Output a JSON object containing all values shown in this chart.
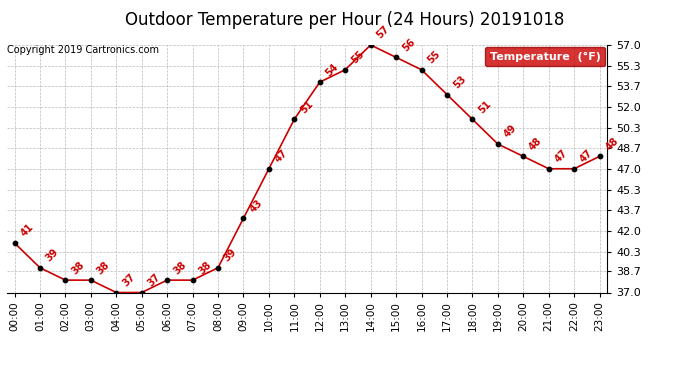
{
  "title": "Outdoor Temperature per Hour (24 Hours) 20191018",
  "copyright": "Copyright 2019 Cartronics.com",
  "legend_label": "Temperature  (°F)",
  "hours": [
    0,
    1,
    2,
    3,
    4,
    5,
    6,
    7,
    8,
    9,
    10,
    11,
    12,
    13,
    14,
    15,
    16,
    17,
    18,
    19,
    20,
    21,
    22,
    23
  ],
  "hour_labels": [
    "00:00",
    "01:00",
    "02:00",
    "03:00",
    "04:00",
    "05:00",
    "06:00",
    "07:00",
    "08:00",
    "09:00",
    "10:00",
    "11:00",
    "12:00",
    "13:00",
    "14:00",
    "15:00",
    "16:00",
    "17:00",
    "18:00",
    "19:00",
    "20:00",
    "21:00",
    "22:00",
    "23:00"
  ],
  "temps": [
    41,
    39,
    38,
    38,
    37,
    37,
    38,
    38,
    39,
    43,
    47,
    51,
    54,
    55,
    57,
    56,
    55,
    53,
    51,
    49,
    48,
    47,
    47,
    48
  ],
  "ylim": [
    37.0,
    57.0
  ],
  "yticks": [
    37.0,
    38.7,
    40.3,
    42.0,
    43.7,
    45.3,
    47.0,
    48.7,
    50.3,
    52.0,
    53.7,
    55.3,
    57.0
  ],
  "line_color": "#cc0000",
  "marker_color": "#000000",
  "legend_bg": "#cc0000",
  "legend_text_color": "#ffffff",
  "title_fontsize": 12,
  "copyright_fontsize": 7,
  "tick_fontsize": 8,
  "annotation_fontsize": 7,
  "background_color": "#ffffff",
  "grid_color": "#bbbbbb"
}
